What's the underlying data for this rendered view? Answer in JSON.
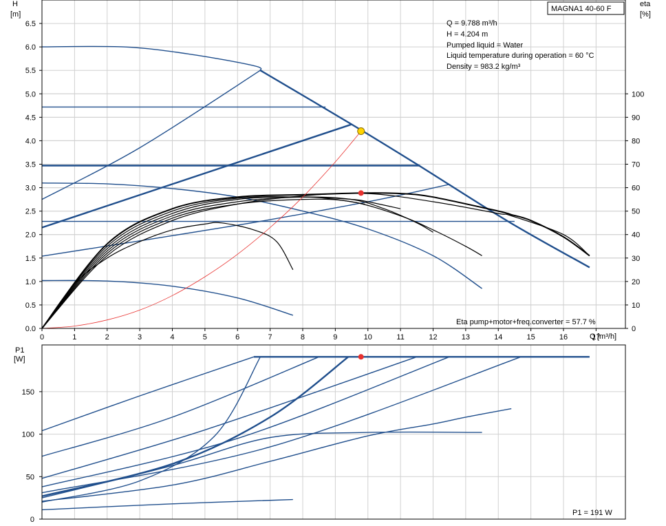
{
  "product_label": "MAGNA1 40-60 F",
  "info_lines": [
    "Q = 9.788 m³/h",
    "H = 4.204 m",
    "Pumped liquid = Water",
    "Liquid temperature during operation = 60 °C",
    "Density = 983.2 kg/m³"
  ],
  "eta_annotation": "Eta pump+motor+freq.converter = 57.7 %",
  "p1_annotation": "P1 = 191 W",
  "colors": {
    "curve_blue": "#1f4e8c",
    "eta_black": "#000000",
    "system_red": "#e8312f",
    "op_point_yellow": "#ffd400",
    "op_point_red": "#e8312f"
  },
  "chart_data": [
    {
      "type": "line",
      "name": "head_efficiency",
      "x_label": [
        "Q",
        "[m³/h]"
      ],
      "y_left_label": [
        "H",
        "[m]"
      ],
      "y_right_label": [
        "eta",
        "[%]"
      ],
      "xlim": [
        0,
        17.9
      ],
      "ylim_left": [
        0,
        7.0
      ],
      "ylim_right": [
        0,
        140
      ],
      "x_ticks": [
        0,
        1,
        2,
        3,
        4,
        5,
        6,
        7,
        8,
        9,
        10,
        11,
        12,
        13,
        14,
        15,
        16,
        17
      ],
      "y_left_ticks": [
        0.0,
        0.5,
        1.0,
        1.5,
        2.0,
        2.5,
        3.0,
        3.5,
        4.0,
        4.5,
        5.0,
        5.5,
        6.0,
        6.5
      ],
      "y_right_ticks": [
        0,
        10,
        20,
        30,
        40,
        50,
        60,
        70,
        80,
        90,
        100
      ],
      "grid": true,
      "operating_point": {
        "q": 9.788,
        "h": 4.204,
        "eta": 57.7
      },
      "head_curves": [
        {
          "weight": "thin",
          "points": [
            [
              0,
              6.0
            ],
            [
              2.5,
              6.0
            ],
            [
              4.5,
              5.85
            ],
            [
              6.5,
              5.6
            ],
            [
              6.7,
              5.5
            ]
          ]
        },
        {
          "weight": "thick",
          "points": [
            [
              6.7,
              5.5
            ],
            [
              9.5,
              4.35
            ],
            [
              11.5,
              3.5
            ],
            [
              14.3,
              2.28
            ],
            [
              16.8,
              1.3
            ]
          ]
        },
        {
          "weight": "thin",
          "points": [
            [
              0,
              2.75
            ],
            [
              3,
              3.85
            ],
            [
              6.7,
              5.5
            ]
          ]
        },
        {
          "weight": "thin",
          "points": [
            [
              0,
              4.72
            ],
            [
              8.7,
              4.72
            ]
          ]
        },
        {
          "weight": "thick",
          "points": [
            [
              0,
              2.15
            ],
            [
              9.5,
              4.35
            ]
          ]
        },
        {
          "weight": "thick",
          "points": [
            [
              0,
              3.47
            ],
            [
              11.6,
              3.47
            ]
          ]
        },
        {
          "weight": "thin",
          "points": [
            [
              0,
              3.1
            ],
            [
              2,
              3.08
            ],
            [
              4,
              2.98
            ],
            [
              6,
              2.8
            ],
            [
              8,
              2.5
            ],
            [
              10,
              2.12
            ],
            [
              12,
              1.55
            ],
            [
              13.5,
              0.85
            ]
          ]
        },
        {
          "weight": "thin",
          "points": [
            [
              0,
              1.54
            ],
            [
              6,
              2.2
            ],
            [
              10,
              2.7
            ],
            [
              12.5,
              3.07
            ]
          ]
        },
        {
          "weight": "thin",
          "points": [
            [
              0,
              2.28
            ],
            [
              14.5,
              2.28
            ]
          ]
        },
        {
          "weight": "thin",
          "points": [
            [
              0,
              1.02
            ],
            [
              2,
              1.01
            ],
            [
              4,
              0.9
            ],
            [
              6,
              0.65
            ],
            [
              7.7,
              0.28
            ]
          ]
        }
      ],
      "efficiency_curves": [
        {
          "weight": "thin",
          "points": [
            [
              0,
              0
            ],
            [
              1,
              19
            ],
            [
              2,
              30
            ],
            [
              3,
              37
            ],
            [
              4,
              42
            ],
            [
              5,
              44.5
            ],
            [
              5.5,
              45
            ],
            [
              6.5,
              42
            ],
            [
              7.2,
              37
            ],
            [
              7.7,
              25
            ]
          ]
        },
        {
          "weight": "thin",
          "points": [
            [
              0,
              0
            ],
            [
              2,
              32
            ],
            [
              4,
              47
            ],
            [
              6,
              53
            ],
            [
              8,
              55
            ],
            [
              9.5,
              54
            ],
            [
              11,
              48
            ],
            [
              12,
              42
            ],
            [
              13,
              35
            ],
            [
              13.5,
              31
            ]
          ]
        },
        {
          "weight": "thin",
          "points": [
            [
              0,
              0
            ],
            [
              2,
              33
            ],
            [
              4,
              48
            ],
            [
              6,
              54
            ],
            [
              8,
              56
            ],
            [
              9.5,
              55
            ],
            [
              10.5,
              51
            ],
            [
              11.5,
              45
            ],
            [
              12,
              41
            ]
          ]
        },
        {
          "weight": "thin",
          "points": [
            [
              0,
              0
            ],
            [
              2,
              34
            ],
            [
              4,
              49
            ],
            [
              6,
              55
            ],
            [
              8,
              56
            ],
            [
              9.5,
              55
            ],
            [
              10,
              54
            ],
            [
              11,
              51
            ]
          ]
        },
        {
          "weight": "thin",
          "points": [
            [
              0,
              0
            ],
            [
              2,
              35
            ],
            [
              4,
              50
            ],
            [
              6,
              55.5
            ],
            [
              8,
              56
            ],
            [
              9,
              55
            ],
            [
              9.9,
              53
            ]
          ]
        },
        {
          "weight": "thin",
          "points": [
            [
              0,
              0
            ],
            [
              2,
              31
            ],
            [
              4,
              46
            ],
            [
              6,
              53
            ],
            [
              8,
              56.5
            ],
            [
              10,
              57.5
            ],
            [
              12,
              54
            ],
            [
              14,
              49
            ],
            [
              14.4,
              48
            ],
            [
              16,
              40
            ],
            [
              16.8,
              31
            ]
          ]
        },
        {
          "weight": "thick",
          "points": [
            [
              0,
              0
            ],
            [
              2,
              36
            ],
            [
              4,
              51
            ],
            [
              6,
              56
            ],
            [
              8,
              57
            ],
            [
              9.788,
              57.7
            ],
            [
              11,
              57.5
            ],
            [
              12,
              56
            ],
            [
              14,
              50
            ],
            [
              14.4,
              48.5
            ],
            [
              15,
              46
            ],
            [
              16,
              39
            ],
            [
              16.8,
              31
            ]
          ]
        }
      ],
      "system_curve": {
        "points": [
          [
            0,
            0
          ],
          [
            1,
            0.05
          ],
          [
            2,
            0.18
          ],
          [
            3,
            0.39
          ],
          [
            4,
            0.7
          ],
          [
            5,
            1.1
          ],
          [
            6,
            1.58
          ],
          [
            7,
            2.15
          ],
          [
            8,
            2.8
          ],
          [
            9,
            3.55
          ],
          [
            9.788,
            4.204
          ]
        ]
      }
    },
    {
      "type": "line",
      "name": "power",
      "y_label": [
        "P1",
        "[W]"
      ],
      "xlim": [
        0,
        17.9
      ],
      "ylim": [
        0,
        205
      ],
      "y_ticks": [
        0,
        50,
        100,
        150
      ],
      "x_ticks": [
        0,
        1,
        2,
        3,
        4,
        5,
        6,
        7,
        8,
        9,
        10,
        11,
        12,
        13,
        14,
        15,
        16,
        17
      ],
      "grid": true,
      "operating_point": {
        "q": 9.788,
        "p1": 191
      },
      "power_curves": [
        {
          "weight": "thin",
          "points": [
            [
              0,
              104
            ],
            [
              3,
              145
            ],
            [
              6.5,
              191
            ]
          ]
        },
        {
          "weight": "thin",
          "points": [
            [
              0,
              74
            ],
            [
              4,
              120
            ],
            [
              8.5,
              191
            ]
          ]
        },
        {
          "weight": "thin",
          "points": [
            [
              0,
              48
            ],
            [
              5,
              105
            ],
            [
              11.5,
              191
            ]
          ]
        },
        {
          "weight": "thin",
          "points": [
            [
              0,
              38
            ],
            [
              6,
              95
            ],
            [
              12.5,
              191
            ]
          ]
        },
        {
          "weight": "thin",
          "points": [
            [
              0,
              31
            ],
            [
              7,
              85
            ],
            [
              14.7,
              191
            ]
          ]
        },
        {
          "weight": "thin",
          "points": [
            [
              0,
              21
            ],
            [
              4,
              40
            ],
            [
              7,
              68
            ],
            [
              10,
              98
            ],
            [
              12,
              112
            ],
            [
              13,
              120
            ],
            [
              14.4,
              130
            ]
          ]
        },
        {
          "weight": "thin",
          "points": [
            [
              0,
              20
            ],
            [
              3,
              45
            ],
            [
              5.3,
              98
            ],
            [
              6.7,
              191
            ]
          ]
        },
        {
          "weight": "thin",
          "points": [
            [
              0,
              25
            ],
            [
              4,
              63
            ],
            [
              7,
              96
            ],
            [
              10,
              102
            ],
            [
              13.5,
              102
            ]
          ]
        },
        {
          "weight": "thick",
          "points": [
            [
              0,
              27
            ],
            [
              4,
              65
            ],
            [
              7,
              120
            ],
            [
              9.4,
              191
            ]
          ]
        },
        {
          "weight": "thick",
          "points": [
            [
              6.5,
              191
            ],
            [
              16.8,
              191
            ]
          ]
        },
        {
          "weight": "thin",
          "points": [
            [
              0,
              11
            ],
            [
              4,
              18
            ],
            [
              7.7,
              23
            ]
          ]
        }
      ]
    }
  ]
}
